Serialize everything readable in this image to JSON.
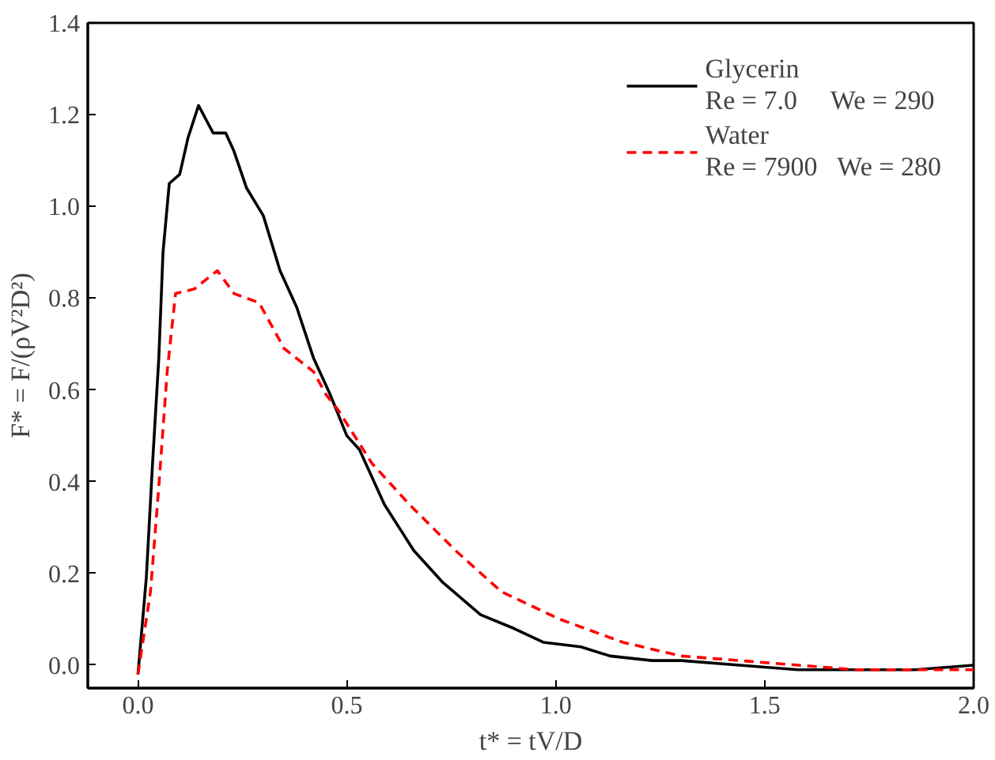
{
  "chart_data": {
    "type": "line",
    "xlabel": "t* = tV/D",
    "ylabel": "F* = F/(ρV²D²)",
    "xlim": [
      -0.12,
      2.0
    ],
    "ylim": [
      -0.05,
      1.4
    ],
    "xticks": [
      {
        "value": 0,
        "label": "0.0"
      },
      0.5,
      {
        "value": 1,
        "label": "1.0"
      },
      1.5,
      {
        "value": 2,
        "label": "2.0"
      }
    ],
    "yticks": [
      {
        "value": 0,
        "label": "0.0"
      },
      0.2,
      0.4,
      0.6,
      0.8,
      {
        "value": 1,
        "label": "1.0"
      },
      1.2,
      1.4
    ],
    "grid": false,
    "legend": "top right",
    "annotations": [
      "Re = 7.0     We = 290",
      "Re = 7900   We = 280"
    ],
    "series": [
      {
        "name": "Glycerin",
        "color": "#000000",
        "line_style": "solid",
        "x": [
          0.0,
          0.02,
          0.035,
          0.05,
          0.06,
          0.075,
          0.1,
          0.12,
          0.145,
          0.18,
          0.21,
          0.23,
          0.26,
          0.3,
          0.34,
          0.38,
          0.42,
          0.46,
          0.5,
          0.53,
          0.59,
          0.66,
          0.73,
          0.82,
          0.9,
          0.97,
          1.06,
          1.13,
          1.23,
          1.3,
          1.44,
          1.58,
          1.72,
          1.86,
          2.0
        ],
        "values": [
          -0.02,
          0.19,
          0.44,
          0.67,
          0.9,
          1.05,
          1.07,
          1.15,
          1.22,
          1.16,
          1.16,
          1.12,
          1.04,
          0.98,
          0.86,
          0.78,
          0.67,
          0.59,
          0.5,
          0.47,
          0.35,
          0.25,
          0.18,
          0.11,
          0.08,
          0.05,
          0.04,
          0.02,
          0.01,
          0.01,
          0.0,
          -0.01,
          -0.01,
          -0.01,
          0.0
        ]
      },
      {
        "name": "Water",
        "color": "#ff0000",
        "line_style": "dashed",
        "x": [
          0.0,
          0.03,
          0.05,
          0.07,
          0.09,
          0.135,
          0.19,
          0.23,
          0.29,
          0.35,
          0.42,
          0.45,
          0.48,
          0.56,
          0.65,
          0.76,
          0.87,
          1.01,
          1.16,
          1.3,
          1.44,
          1.58,
          1.72,
          1.86,
          2.0
        ],
        "values": [
          -0.02,
          0.16,
          0.39,
          0.64,
          0.81,
          0.82,
          0.86,
          0.81,
          0.79,
          0.69,
          0.64,
          0.59,
          0.555,
          0.44,
          0.35,
          0.25,
          0.16,
          0.1,
          0.05,
          0.02,
          0.01,
          0.0,
          -0.01,
          -0.01,
          -0.01
        ]
      }
    ]
  }
}
